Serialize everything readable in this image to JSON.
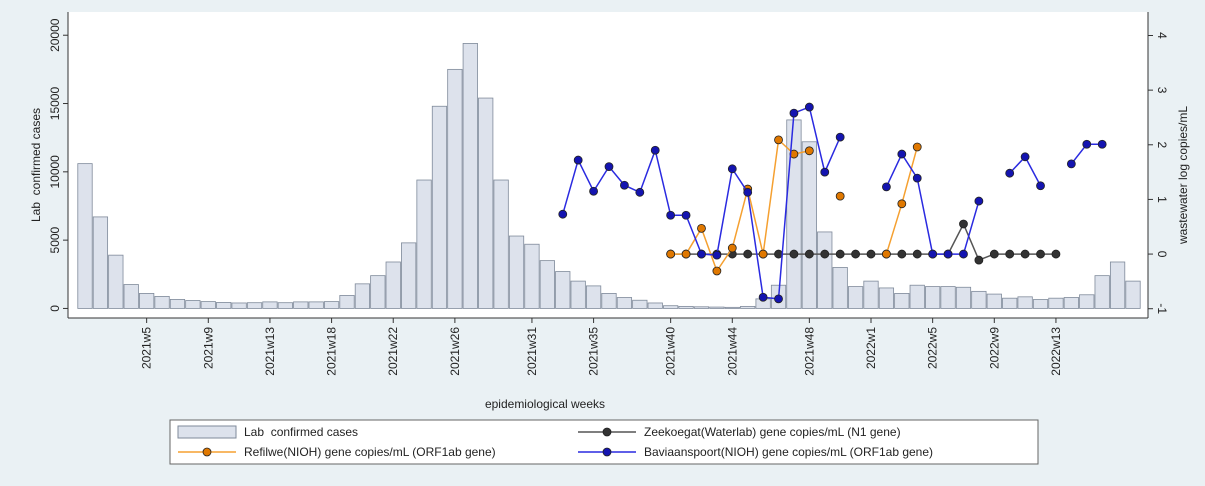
{
  "chart_data": {
    "type": "bar",
    "xlabel": "epidemiological weeks",
    "ylabel": "Lab  confirmed cases",
    "y2label": "wastewater log copies/mL",
    "categories": [
      null,
      null,
      null,
      null,
      "2021w5",
      null,
      null,
      null,
      "2021w9",
      null,
      null,
      null,
      "2021w13",
      null,
      null,
      null,
      "2021w18",
      null,
      null,
      null,
      "2021w22",
      null,
      null,
      null,
      "2021w26",
      null,
      null,
      null,
      null,
      "2021w31",
      null,
      null,
      null,
      "2021w35",
      null,
      null,
      null,
      null,
      "2021w40",
      null,
      null,
      null,
      "2021w44",
      null,
      null,
      null,
      null,
      "2021w48",
      null,
      null,
      null,
      "2022w1",
      null,
      null,
      null,
      "2022w5",
      null,
      null,
      null,
      "2022w9",
      null,
      null,
      null,
      "2022w13",
      null,
      null,
      null,
      null,
      null
    ],
    "ylim": [
      -700,
      21700
    ],
    "yticks": [
      0,
      5000,
      10000,
      15000,
      20000
    ],
    "y2lim": [
      -1.17,
      4.43
    ],
    "y2ticks": [
      -1,
      0,
      1,
      2,
      3,
      4
    ],
    "series": [
      {
        "name": "Lab  confirmed cases",
        "type": "bar",
        "color": "#dde2ec",
        "edge": "#7f8a9a",
        "values": [
          10600,
          6700,
          3900,
          1750,
          1100,
          880,
          660,
          580,
          500,
          440,
          400,
          420,
          480,
          420,
          480,
          480,
          500,
          950,
          1800,
          2400,
          3400,
          4800,
          9400,
          14800,
          17500,
          19400,
          15400,
          9400,
          5300,
          4700,
          3500,
          2700,
          2000,
          1650,
          1100,
          800,
          600,
          400,
          200,
          150,
          120,
          100,
          80,
          150,
          700,
          1700,
          13800,
          12200,
          5600,
          3000,
          1600,
          2000,
          1500,
          1100,
          1700,
          1600,
          1600,
          1550,
          1250,
          1050,
          750,
          850,
          650,
          750,
          800,
          1000,
          2400,
          3400,
          2000
        ]
      },
      {
        "name": "Zeekoegat(Waterlab) gene copies/mL (N1 gene)",
        "type": "line",
        "axis": "y2",
        "color": "#555555",
        "marker": "#333333",
        "values": [
          null,
          null,
          null,
          null,
          null,
          null,
          null,
          null,
          null,
          null,
          null,
          null,
          null,
          null,
          null,
          null,
          null,
          null,
          null,
          null,
          null,
          null,
          null,
          null,
          null,
          null,
          null,
          null,
          null,
          null,
          null,
          null,
          null,
          null,
          null,
          null,
          null,
          null,
          0,
          0,
          0,
          0,
          0,
          0,
          0,
          0,
          0,
          0,
          0,
          0,
          0,
          0,
          0,
          0,
          0,
          0,
          0,
          0.55,
          -0.11,
          0,
          0,
          0,
          0,
          0,
          null,
          null,
          null,
          null,
          null
        ]
      },
      {
        "name": "Refilwe(NIOH) gene copies/mL (ORF1ab gene)",
        "type": "line",
        "axis": "y2",
        "color": "#f5a030",
        "marker": "#e07800",
        "values": [
          null,
          null,
          null,
          null,
          null,
          null,
          null,
          null,
          null,
          null,
          null,
          null,
          null,
          null,
          null,
          null,
          null,
          null,
          null,
          null,
          null,
          null,
          null,
          null,
          null,
          null,
          null,
          null,
          null,
          null,
          null,
          null,
          null,
          null,
          null,
          null,
          null,
          null,
          0,
          0,
          0.47,
          -0.31,
          0.11,
          1.19,
          0,
          2.09,
          1.83,
          1.89,
          null,
          1.06,
          null,
          null,
          0,
          0.92,
          1.96,
          null,
          null,
          null,
          null,
          null,
          null,
          null,
          null,
          null,
          null,
          null,
          null,
          null,
          null
        ]
      },
      {
        "name": "Baviaanspoort(NIOH) gene copies/mL (ORF1ab gene)",
        "type": "line",
        "axis": "y2",
        "color": "#2a2ae0",
        "marker": "#1414b0",
        "values": [
          null,
          null,
          null,
          null,
          null,
          null,
          null,
          null,
          null,
          null,
          null,
          null,
          null,
          null,
          null,
          null,
          null,
          null,
          null,
          null,
          null,
          null,
          null,
          null,
          null,
          null,
          null,
          null,
          null,
          null,
          null,
          0.73,
          1.72,
          1.15,
          1.6,
          1.26,
          1.13,
          1.9,
          0.71,
          0.71,
          0,
          -0.02,
          1.56,
          1.13,
          -0.79,
          -0.82,
          2.58,
          2.69,
          1.5,
          2.14,
          null,
          null,
          1.23,
          1.83,
          1.39,
          0,
          0,
          0,
          0.97,
          null,
          1.48,
          1.78,
          1.25,
          null,
          1.65,
          2.01,
          2.01,
          null,
          null
        ]
      }
    ]
  }
}
